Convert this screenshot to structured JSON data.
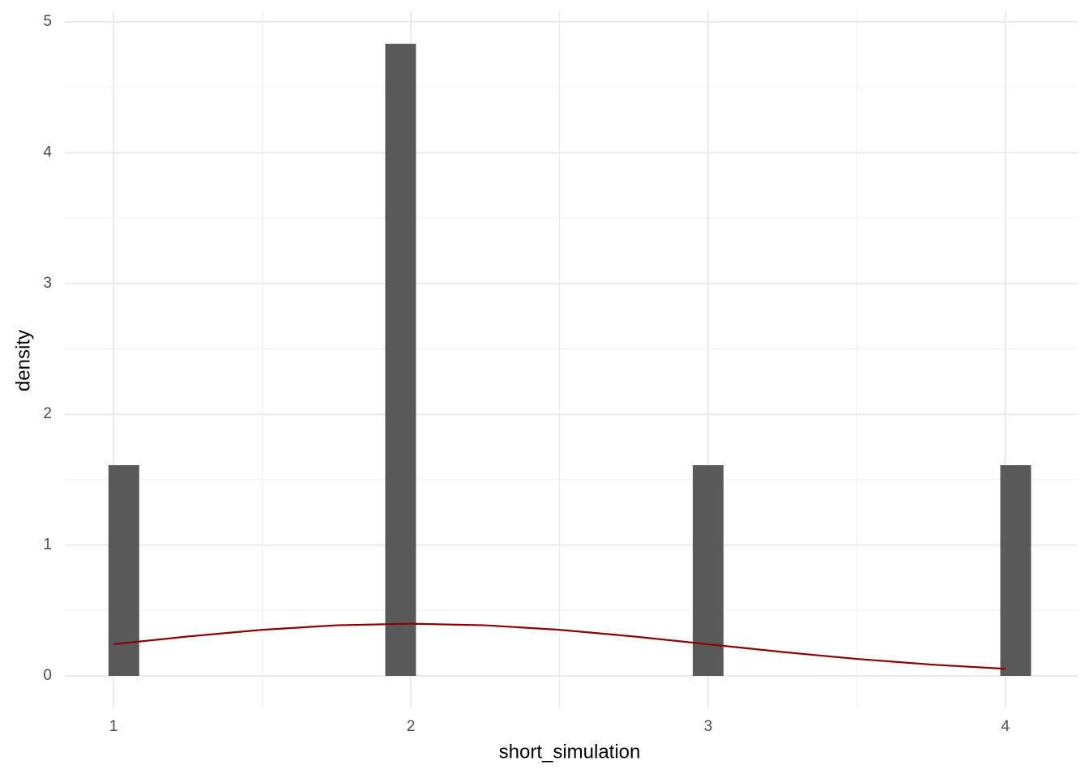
{
  "chart_data": {
    "type": "histogram",
    "x_label": "short_simulation",
    "y_label": "density",
    "bins": [
      0.98276,
      1.08621,
      1.18966,
      1.2931,
      1.39655,
      1.5,
      1.60345,
      1.7069,
      1.81034,
      1.91379,
      2.01724,
      2.12069,
      2.22414,
      2.32759,
      2.43103,
      2.53448,
      2.63793,
      2.74138,
      2.84483,
      2.94828,
      3.05172,
      3.15517,
      3.25862,
      3.36207,
      3.46552,
      3.56897,
      3.67241,
      3.77586,
      3.87931,
      3.98276,
      4.08621
    ],
    "values": [
      1.611,
      0,
      0,
      0,
      0,
      0,
      0,
      0,
      0,
      4.833,
      0,
      0,
      0,
      0,
      0,
      0,
      0,
      0,
      0,
      1.611,
      0,
      0,
      0,
      0,
      0,
      0,
      0,
      0,
      0,
      1.611
    ],
    "color": "#595959",
    "density_curve": {
      "color": "#8b0000",
      "x": [
        1,
        1.25,
        1.5,
        1.75,
        2,
        2.25,
        2.5,
        2.75,
        3,
        3.25,
        3.5,
        3.75,
        4
      ],
      "values": [
        0.242,
        0.3011,
        0.3521,
        0.3867,
        0.3989,
        0.3867,
        0.3521,
        0.3011,
        0.242,
        0.1826,
        0.1295,
        0.0863,
        0.054
      ]
    },
    "xlim": [
      0.836,
      4.243
    ],
    "ylim": [
      -0.248,
      5.087
    ],
    "xticks": [
      1,
      2,
      3,
      4
    ],
    "yticks": [
      0,
      1,
      2,
      3,
      4,
      5
    ],
    "grid": true,
    "minor_grid": true
  }
}
